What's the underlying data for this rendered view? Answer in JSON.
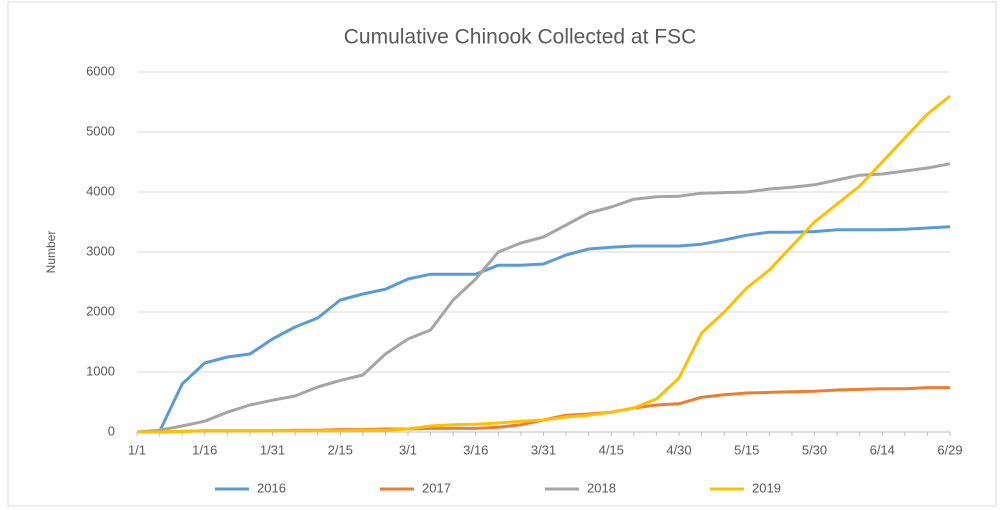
{
  "chart_data": {
    "type": "line",
    "title": "Cumulative Chinook Collected at FSC",
    "y_label": "Number",
    "categories": [
      "1/1",
      null,
      null,
      "1/16",
      null,
      null,
      "1/31",
      null,
      null,
      "2/15",
      null,
      null,
      "3/1",
      null,
      null,
      "3/16",
      null,
      null,
      "3/31",
      null,
      null,
      "4/15",
      null,
      null,
      "4/30",
      null,
      null,
      "5/15",
      null,
      null,
      "5/30",
      null,
      null,
      "6/14",
      null,
      null,
      "6/29"
    ],
    "series": [
      {
        "name": "2016",
        "color": "#5b9bd5",
        "values": [
          0,
          10,
          800,
          1150,
          1250,
          1300,
          1550,
          1750,
          1900,
          2200,
          2300,
          2380,
          2550,
          2630,
          2630,
          2630,
          2780,
          2780,
          2800,
          2950,
          3050,
          3080,
          3100,
          3100,
          3100,
          3130,
          3200,
          3280,
          3330,
          3330,
          3340,
          3370,
          3370,
          3370,
          3380,
          3400,
          3420
        ]
      },
      {
        "name": "2017",
        "color": "#ed7d31",
        "values": [
          0,
          0,
          10,
          20,
          20,
          20,
          20,
          30,
          30,
          40,
          40,
          50,
          50,
          60,
          60,
          60,
          80,
          120,
          200,
          280,
          300,
          330,
          400,
          450,
          470,
          580,
          620,
          650,
          660,
          670,
          680,
          700,
          710,
          720,
          720,
          740,
          740
        ]
      },
      {
        "name": "2018",
        "color": "#a5a5a5",
        "values": [
          0,
          30,
          100,
          180,
          330,
          450,
          530,
          600,
          750,
          860,
          950,
          1300,
          1550,
          1700,
          2200,
          2550,
          3000,
          3150,
          3250,
          3450,
          3650,
          3750,
          3880,
          3920,
          3930,
          3980,
          3990,
          4000,
          4050,
          4080,
          4120,
          4200,
          4280,
          4300,
          4350,
          4400,
          4470
        ]
      },
      {
        "name": "2019",
        "color": "#ffc000",
        "values": [
          0,
          0,
          10,
          20,
          20,
          20,
          20,
          20,
          20,
          20,
          30,
          30,
          50,
          100,
          120,
          130,
          150,
          180,
          200,
          250,
          280,
          330,
          400,
          550,
          900,
          1650,
          2000,
          2400,
          2700,
          3100,
          3500,
          3800,
          4100,
          4500,
          4900,
          5300,
          5600
        ]
      }
    ],
    "ylim": [
      0,
      6000
    ],
    "yticks": [
      0,
      1000,
      2000,
      3000,
      4000,
      5000,
      6000
    ],
    "grid": true,
    "legend": "bottom"
  }
}
